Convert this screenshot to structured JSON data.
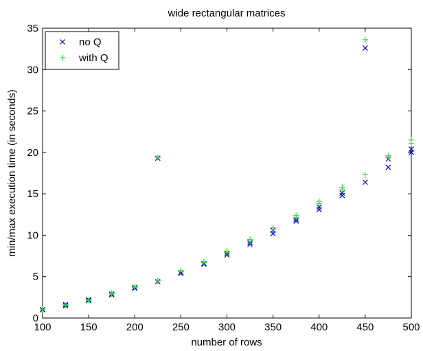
{
  "chart_data": {
    "type": "scatter",
    "title": "wide rectangular matrices",
    "xlabel": "number of rows",
    "ylabel": "min/max execution time (in seconds)",
    "xlim": [
      100,
      500
    ],
    "ylim": [
      0,
      35
    ],
    "xticks": [
      100,
      150,
      200,
      250,
      300,
      350,
      400,
      450,
      500
    ],
    "yticks": [
      0,
      5,
      10,
      15,
      20,
      25,
      30,
      35
    ],
    "grid": false,
    "legend_position": "top-left",
    "series": [
      {
        "name": "no Q",
        "marker": "x",
        "color": "#0000cc",
        "points": [
          [
            100,
            1.0
          ],
          [
            100,
            1.0
          ],
          [
            125,
            1.5
          ],
          [
            125,
            1.6
          ],
          [
            150,
            2.1
          ],
          [
            150,
            2.2
          ],
          [
            175,
            2.8
          ],
          [
            175,
            2.9
          ],
          [
            200,
            3.6
          ],
          [
            200,
            3.7
          ],
          [
            225,
            4.4
          ],
          [
            225,
            19.3
          ],
          [
            250,
            5.4
          ],
          [
            250,
            5.5
          ],
          [
            275,
            6.5
          ],
          [
            275,
            6.6
          ],
          [
            300,
            7.6
          ],
          [
            300,
            7.8
          ],
          [
            325,
            8.9
          ],
          [
            325,
            9.1
          ],
          [
            350,
            10.2
          ],
          [
            350,
            10.6
          ],
          [
            375,
            11.7
          ],
          [
            375,
            11.9
          ],
          [
            400,
            13.1
          ],
          [
            400,
            13.4
          ],
          [
            425,
            14.8
          ],
          [
            425,
            15.1
          ],
          [
            450,
            16.4
          ],
          [
            450,
            32.6
          ],
          [
            475,
            18.2
          ],
          [
            475,
            19.2
          ],
          [
            500,
            20.0
          ],
          [
            500,
            20.4
          ]
        ]
      },
      {
        "name": "with Q",
        "marker": "+",
        "color": "#33dd33",
        "points": [
          [
            100,
            1.0
          ],
          [
            100,
            1.0
          ],
          [
            125,
            1.5
          ],
          [
            125,
            1.6
          ],
          [
            150,
            2.1
          ],
          [
            150,
            2.2
          ],
          [
            175,
            2.9
          ],
          [
            175,
            3.0
          ],
          [
            200,
            3.7
          ],
          [
            200,
            3.8
          ],
          [
            225,
            4.5
          ],
          [
            225,
            19.4
          ],
          [
            250,
            5.6
          ],
          [
            250,
            5.7
          ],
          [
            275,
            6.7
          ],
          [
            275,
            6.8
          ],
          [
            300,
            7.9
          ],
          [
            300,
            8.1
          ],
          [
            325,
            9.2
          ],
          [
            325,
            9.5
          ],
          [
            350,
            10.7
          ],
          [
            350,
            10.9
          ],
          [
            375,
            12.1
          ],
          [
            375,
            12.4
          ],
          [
            400,
            13.8
          ],
          [
            400,
            14.1
          ],
          [
            425,
            15.5
          ],
          [
            425,
            15.8
          ],
          [
            450,
            17.3
          ],
          [
            450,
            33.6
          ],
          [
            475,
            19.4
          ],
          [
            475,
            19.6
          ],
          [
            500,
            21.1
          ],
          [
            500,
            21.5
          ]
        ]
      }
    ]
  }
}
